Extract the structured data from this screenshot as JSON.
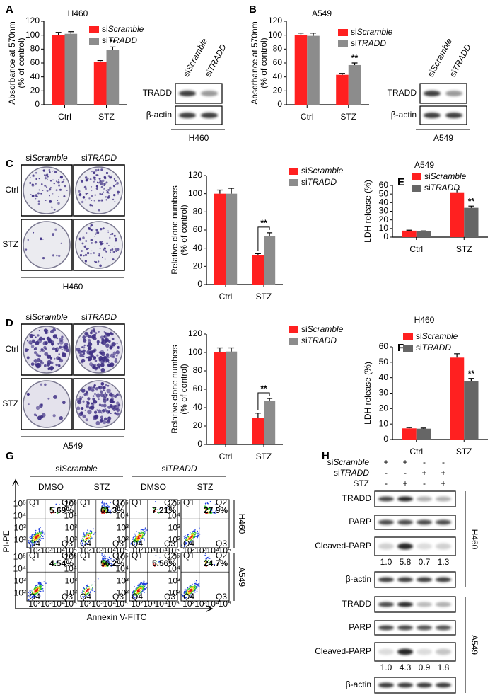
{
  "chart_data": [
    {
      "type": "bar",
      "label": "A",
      "title": "H460",
      "ylabel": [
        "Absorbance at 570nm",
        "(% of control)"
      ],
      "categories": [
        "Ctrl",
        "STZ"
      ],
      "series": [
        {
          "name": "siScramble",
          "color": "#ff2020",
          "values": [
            100,
            62
          ],
          "errors": [
            4,
            1.5
          ]
        },
        {
          "name": "siTRADD",
          "color": "#8c8c8c",
          "values": [
            102,
            79
          ],
          "errors": [
            3,
            4
          ]
        }
      ],
      "ylim": [
        0,
        120
      ],
      "yticks": [
        0,
        20,
        40,
        60,
        80,
        100,
        120
      ],
      "annotation": "**"
    },
    {
      "type": "bar",
      "label": "B",
      "title": "A549",
      "ylabel": [
        "Absorbance at 570nm",
        "(% of control)"
      ],
      "categories": [
        "Ctrl",
        "STZ"
      ],
      "series": [
        {
          "name": "siScramble",
          "color": "#ff2020",
          "values": [
            100,
            43
          ],
          "errors": [
            3,
            2
          ]
        },
        {
          "name": "siTRADD",
          "color": "#8c8c8c",
          "values": [
            99,
            57
          ],
          "errors": [
            4,
            3
          ]
        }
      ],
      "ylim": [
        0,
        120
      ],
      "yticks": [
        0,
        20,
        40,
        60,
        80,
        100,
        120
      ],
      "annotation": "**"
    },
    {
      "type": "bar",
      "label": "C",
      "ylabel": [
        "Relative clone numbers",
        "(% of control)"
      ],
      "categories": [
        "Ctrl",
        "STZ"
      ],
      "series": [
        {
          "name": "siScramble",
          "color": "#ff2020",
          "values": [
            100,
            32
          ],
          "errors": [
            4,
            2
          ]
        },
        {
          "name": "siTRADD",
          "color": "#8c8c8c",
          "values": [
            100,
            53
          ],
          "errors": [
            6,
            4
          ]
        }
      ],
      "ylim": [
        0,
        120
      ],
      "yticks": [
        0,
        20,
        40,
        60,
        80,
        100,
        120
      ],
      "annotation": "**",
      "bracket": true
    },
    {
      "type": "bar",
      "label": "D",
      "ylabel": [
        "Relative clone numbers",
        "(% of control)"
      ],
      "categories": [
        "Ctrl",
        "STZ"
      ],
      "series": [
        {
          "name": "siScramble",
          "color": "#ff2020",
          "values": [
            100,
            29
          ],
          "errors": [
            5,
            5
          ]
        },
        {
          "name": "siTRADD",
          "color": "#8c8c8c",
          "values": [
            101,
            47
          ],
          "errors": [
            4,
            3
          ]
        }
      ],
      "ylim": [
        0,
        120
      ],
      "yticks": [
        0,
        20,
        40,
        60,
        80,
        100,
        120
      ],
      "annotation": "**",
      "bracket": true
    },
    {
      "type": "bar",
      "label": "E",
      "title": "A549",
      "ylabel": [
        "LDH release (%)"
      ],
      "categories": [
        "Ctrl",
        "STZ"
      ],
      "series": [
        {
          "name": "siScramble",
          "color": "#ff2020",
          "values": [
            7.5,
            52
          ],
          "errors": [
            0.5,
            3
          ]
        },
        {
          "name": "siTRADD",
          "color": "#666666",
          "values": [
            6.8,
            34
          ],
          "errors": [
            0.4,
            2
          ]
        }
      ],
      "ylim": [
        0,
        60
      ],
      "yticks": [
        0,
        10,
        20,
        30,
        40,
        50,
        60
      ],
      "annotation": "**"
    },
    {
      "type": "bar",
      "label": "F",
      "title": "H460",
      "ylabel": [
        "LDH release (%)"
      ],
      "categories": [
        "Ctrl",
        "STZ"
      ],
      "series": [
        {
          "name": "siScramble",
          "color": "#ff2020",
          "values": [
            7.2,
            53
          ],
          "errors": [
            0.5,
            2.5
          ]
        },
        {
          "name": "siTRADD",
          "color": "#666666",
          "values": [
            7,
            38
          ],
          "errors": [
            0.4,
            1.5
          ]
        }
      ],
      "ylim": [
        0,
        60
      ],
      "yticks": [
        0,
        10,
        20,
        30,
        40,
        50,
        60
      ],
      "annotation": "**"
    }
  ],
  "blots": [
    {
      "lanes": [
        "siScramble",
        "siTRADD"
      ],
      "rows": [
        "TRADD",
        "β-actin"
      ],
      "cell": "H460"
    },
    {
      "lanes": [
        "siScramble",
        "siTRADD"
      ],
      "rows": [
        "TRADD",
        "β-actin"
      ],
      "cell": "A549"
    }
  ],
  "colonies": [
    {
      "columns": [
        "siScramble",
        "siTRADD"
      ],
      "rows": [
        "Ctrl",
        "STZ"
      ],
      "cell": "H460"
    },
    {
      "columns": [
        "siScramble",
        "siTRADD"
      ],
      "rows": [
        "Ctrl",
        "STZ"
      ],
      "cell": "A549"
    }
  ],
  "panel_g": {
    "label": "G",
    "groups": [
      "siScramble",
      "siTRADD"
    ],
    "treatments": [
      "DMSO",
      "STZ",
      "DMSO",
      "STZ"
    ],
    "cells": [
      "H460",
      "A549"
    ],
    "percent": [
      [
        "5.69%",
        "61.3%",
        "7.21%",
        "27.9%"
      ],
      [
        "4.54%",
        "56.2%",
        "5.56%",
        "24.7%"
      ]
    ],
    "y_axis": "PI-PE",
    "x_axis": "Annexin V-FITC",
    "quadrants": [
      "Q1",
      "Q2",
      "Q3",
      "Q4"
    ],
    "ticks": [
      "10²",
      "10³",
      "10⁴",
      "10⁵"
    ]
  },
  "panel_h": {
    "label": "H",
    "conditions": [
      {
        "name": "siScramble",
        "signs": [
          "+",
          "+",
          "-",
          "-"
        ]
      },
      {
        "name": "siTRADD",
        "signs": [
          "-",
          "-",
          "+",
          "+"
        ]
      },
      {
        "name": "STZ",
        "signs": [
          "-",
          "+",
          "-",
          "+"
        ]
      }
    ],
    "blocks": [
      {
        "cell": "H460",
        "rows": [
          "TRADD",
          "PARP",
          "Cleaved-PARP",
          "β-actin"
        ],
        "quant": [
          "1.0",
          "5.8",
          "0.7",
          "1.3"
        ]
      },
      {
        "cell": "A549",
        "rows": [
          "TRADD",
          "PARP",
          "Cleaved-PARP",
          "β-actin"
        ],
        "quant": [
          "1.0",
          "4.3",
          "0.9",
          "1.8"
        ]
      }
    ]
  }
}
